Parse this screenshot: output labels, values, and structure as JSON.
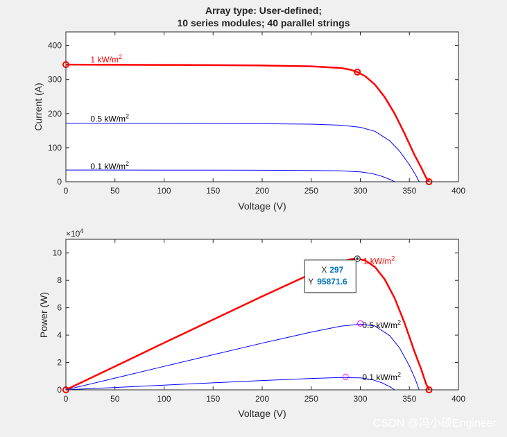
{
  "chart_data": [
    {
      "type": "line",
      "title_lines": [
        "Array type: User-defined;",
        "10 series modules; 40 parallel strings"
      ],
      "xlabel": "Voltage (V)",
      "ylabel": "Current (A)",
      "xlim": [
        0,
        400
      ],
      "ylim": [
        0,
        440
      ],
      "xticks": [
        "0",
        "50",
        "100",
        "150",
        "200",
        "250",
        "300",
        "350",
        "400"
      ],
      "yticks": [
        "0",
        "100",
        "200",
        "300",
        "400"
      ],
      "series": [
        {
          "name": "1 kW/m2",
          "color": "#ff0000",
          "width": 2.5,
          "x": [
            0,
            50,
            100,
            150,
            200,
            250,
            280,
            290,
            297,
            305,
            315,
            325,
            335,
            345,
            355,
            362,
            367,
            370
          ],
          "y": [
            344,
            343.5,
            343,
            342.5,
            341.5,
            339,
            334,
            329,
            322,
            310,
            285,
            248,
            200,
            142,
            80,
            42,
            12,
            0
          ]
        },
        {
          "name": "0.5 kW/m2",
          "color": "#0000ff",
          "width": 1,
          "x": [
            0,
            50,
            100,
            150,
            200,
            250,
            280,
            300,
            315,
            330,
            340,
            350,
            356,
            360
          ],
          "y": [
            172,
            171.8,
            171.5,
            171,
            170.5,
            169,
            166,
            160,
            148,
            120,
            90,
            50,
            22,
            0
          ]
        },
        {
          "name": "0.1 kW/m2",
          "color": "#0000ff",
          "width": 1,
          "x": [
            0,
            50,
            100,
            150,
            200,
            250,
            280,
            300,
            312,
            322,
            330,
            335
          ],
          "y": [
            34.5,
            34.4,
            34.3,
            34.1,
            33.9,
            33.3,
            32,
            29,
            24,
            16,
            7,
            0
          ]
        }
      ],
      "markers": [
        {
          "x": 0,
          "y": 344,
          "color": "#ff0000"
        },
        {
          "x": 297,
          "y": 322,
          "color": "#ff0000"
        },
        {
          "x": 370,
          "y": 0,
          "color": "#ff0000"
        }
      ],
      "annotations": [
        {
          "text": "1 kW/m",
          "sup": "2",
          "x": 25,
          "y": 350,
          "color": "#ff0000"
        },
        {
          "text": "0.5 kW/m",
          "sup": "2",
          "x": 25,
          "y": 176,
          "color": "#000000"
        },
        {
          "text": "0.1 kW/m",
          "sup": "2",
          "x": 25,
          "y": 37,
          "color": "#000000"
        }
      ]
    },
    {
      "type": "line",
      "xlabel": "Voltage (V)",
      "ylabel": "Power (W)",
      "exponent_label": "×10",
      "exponent_power": "4",
      "xlim": [
        0,
        400
      ],
      "ylim": [
        0,
        11
      ],
      "y_scale_note": "values in units of 10^4 W",
      "xticks": [
        "0",
        "50",
        "100",
        "150",
        "200",
        "250",
        "300",
        "350",
        "400"
      ],
      "yticks": [
        "0",
        "2",
        "4",
        "6",
        "8",
        "10"
      ],
      "series": [
        {
          "name": "1 kW/m2",
          "color": "#ff0000",
          "width": 2.5,
          "x": [
            0,
            50,
            100,
            150,
            200,
            250,
            280,
            290,
            297,
            305,
            315,
            325,
            335,
            345,
            355,
            362,
            367,
            370
          ],
          "y": [
            0,
            1.715,
            3.43,
            5.1375,
            6.83,
            8.475,
            9.352,
            9.541,
            9.587,
            9.455,
            8.978,
            8.06,
            6.7,
            4.899,
            2.84,
            1.52,
            0.44,
            0
          ]
        },
        {
          "name": "0.5 kW/m2",
          "color": "#0000ff",
          "width": 1,
          "x": [
            0,
            50,
            100,
            150,
            200,
            250,
            280,
            300,
            315,
            330,
            340,
            350,
            356,
            360
          ],
          "y": [
            0,
            0.859,
            1.715,
            2.565,
            3.41,
            4.225,
            4.648,
            4.8,
            4.662,
            3.96,
            3.06,
            1.75,
            0.783,
            0
          ]
        },
        {
          "name": "0.1 kW/m2",
          "color": "#0000ff",
          "width": 1,
          "x": [
            0,
            50,
            100,
            150,
            200,
            250,
            280,
            300,
            312,
            322,
            330,
            335
          ],
          "y": [
            0,
            0.172,
            0.343,
            0.5115,
            0.678,
            0.8325,
            0.896,
            0.87,
            0.749,
            0.515,
            0.231,
            0
          ]
        }
      ],
      "markers": [
        {
          "x": 0,
          "y": 0,
          "color": "#ff0000"
        },
        {
          "x": 370,
          "y": 0,
          "color": "#ff0000"
        },
        {
          "x": 300,
          "y": 4.85,
          "color": "#ff00ff"
        },
        {
          "x": 285,
          "y": 0.95,
          "color": "#ff00ff"
        }
      ],
      "datatip": {
        "x": 297,
        "y": 9.58716,
        "x_label": "X",
        "x_value": "297",
        "y_label": "Y",
        "y_value": "95871.6"
      },
      "annotations": [
        {
          "text": "1 kW/m",
          "sup": "2",
          "x": 303,
          "y": 9.2,
          "color": "#ff0000"
        },
        {
          "text": "0.5 kW/m",
          "sup": "2",
          "x": 302,
          "y": 4.5,
          "color": "#000000"
        },
        {
          "text": "0.1 kW/m",
          "sup": "2",
          "x": 302,
          "y": 0.7,
          "color": "#000000"
        }
      ]
    }
  ],
  "watermark": "CSDN @冯小硕Engineer"
}
